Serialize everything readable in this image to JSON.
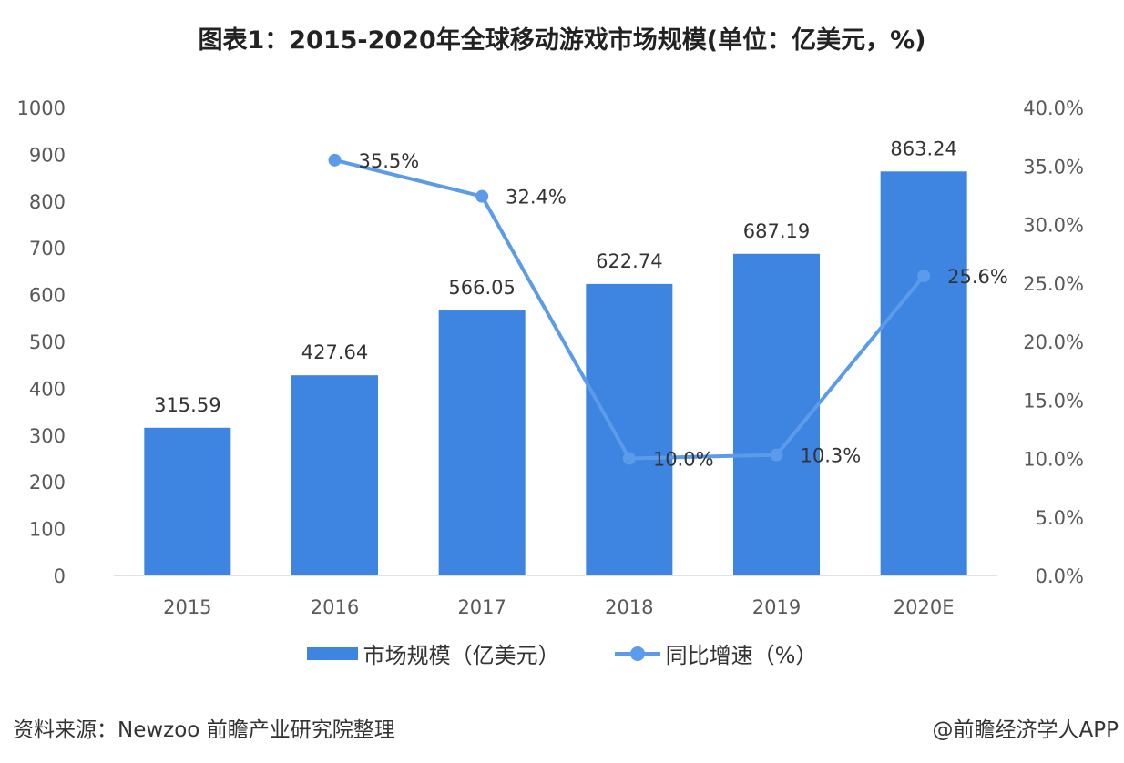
{
  "chart_data": {
    "type": "bar",
    "title": "图表1：2015-2020年全球移动游戏市场规模(单位：亿美元，%)",
    "categories": [
      "2015",
      "2016",
      "2017",
      "2018",
      "2019",
      "2020E"
    ],
    "series": [
      {
        "name": "市场规模（亿美元）",
        "type": "bar",
        "axis": "left",
        "values": [
          315.59,
          427.64,
          566.05,
          622.74,
          687.19,
          863.24
        ],
        "labels": [
          "315.59",
          "427.64",
          "566.05",
          "622.74",
          "687.19",
          "863.24"
        ],
        "color": "#3d85e0"
      },
      {
        "name": "同比增速（%）",
        "type": "line",
        "axis": "right",
        "values": [
          null,
          35.5,
          32.4,
          10.0,
          10.3,
          25.6
        ],
        "labels": [
          "",
          "35.5%",
          "32.4%",
          "10.0%",
          "10.3%",
          "25.6%"
        ],
        "color": "#5b9bea"
      }
    ],
    "y_left": {
      "range": [
        0,
        1000
      ],
      "ticks": [
        "0",
        "100",
        "200",
        "300",
        "400",
        "500",
        "600",
        "700",
        "800",
        "900",
        "1000"
      ]
    },
    "y_right": {
      "range": [
        0,
        40
      ],
      "ticks": [
        "0.0%",
        "5.0%",
        "10.0%",
        "15.0%",
        "20.0%",
        "25.0%",
        "30.0%",
        "35.0%",
        "40.0%"
      ]
    },
    "grid": false,
    "legend": "bottom"
  },
  "footer": {
    "source": "资料来源：Newzoo 前瞻产业研究院整理",
    "credit": "@前瞻经济学人APP"
  },
  "watermark": "前瞻产业研究院"
}
